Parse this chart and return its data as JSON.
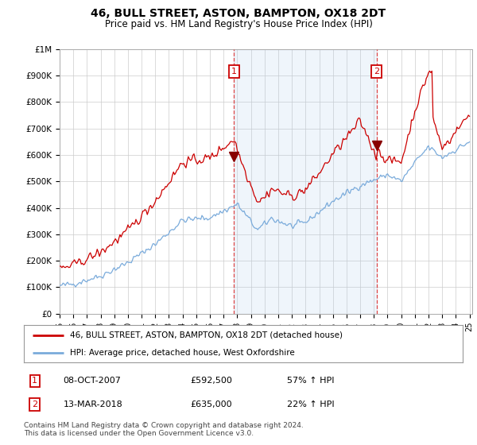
{
  "title": "46, BULL STREET, ASTON, BAMPTON, OX18 2DT",
  "subtitle": "Price paid vs. HM Land Registry's House Price Index (HPI)",
  "legend_line1": "46, BULL STREET, ASTON, BAMPTON, OX18 2DT (detached house)",
  "legend_line2": "HPI: Average price, detached house, West Oxfordshire",
  "footnote": "Contains HM Land Registry data © Crown copyright and database right 2024.\nThis data is licensed under the Open Government Licence v3.0.",
  "transaction1": {
    "label": "1",
    "date": "08-OCT-2007",
    "price": "£592,500",
    "change": "57% ↑ HPI"
  },
  "transaction2": {
    "label": "2",
    "date": "13-MAR-2018",
    "price": "£635,000",
    "change": "22% ↑ HPI"
  },
  "property_color": "#cc0000",
  "hpi_color": "#7aabdb",
  "hpi_fill_color": "#ddeeff",
  "vline_color": "#dd3333",
  "marker_box_color": "#cc0000",
  "background_color": "#ffffff",
  "grid_color": "#cccccc",
  "ylim": [
    0,
    1000000
  ],
  "yticks": [
    0,
    100000,
    200000,
    300000,
    400000,
    500000,
    600000,
    700000,
    800000,
    900000,
    1000000
  ],
  "ytick_labels": [
    "£0",
    "£100K",
    "£200K",
    "£300K",
    "£400K",
    "£500K",
    "£600K",
    "£700K",
    "£800K",
    "£900K",
    "£1M"
  ],
  "xlim_start": 1995.0,
  "xlim_end": 2025.2,
  "vline1_x": 2007.77,
  "vline2_x": 2018.2,
  "property_sale1_x": 2007.77,
  "property_sale1_y": 592500,
  "property_sale2_x": 2018.2,
  "property_sale2_y": 635000
}
